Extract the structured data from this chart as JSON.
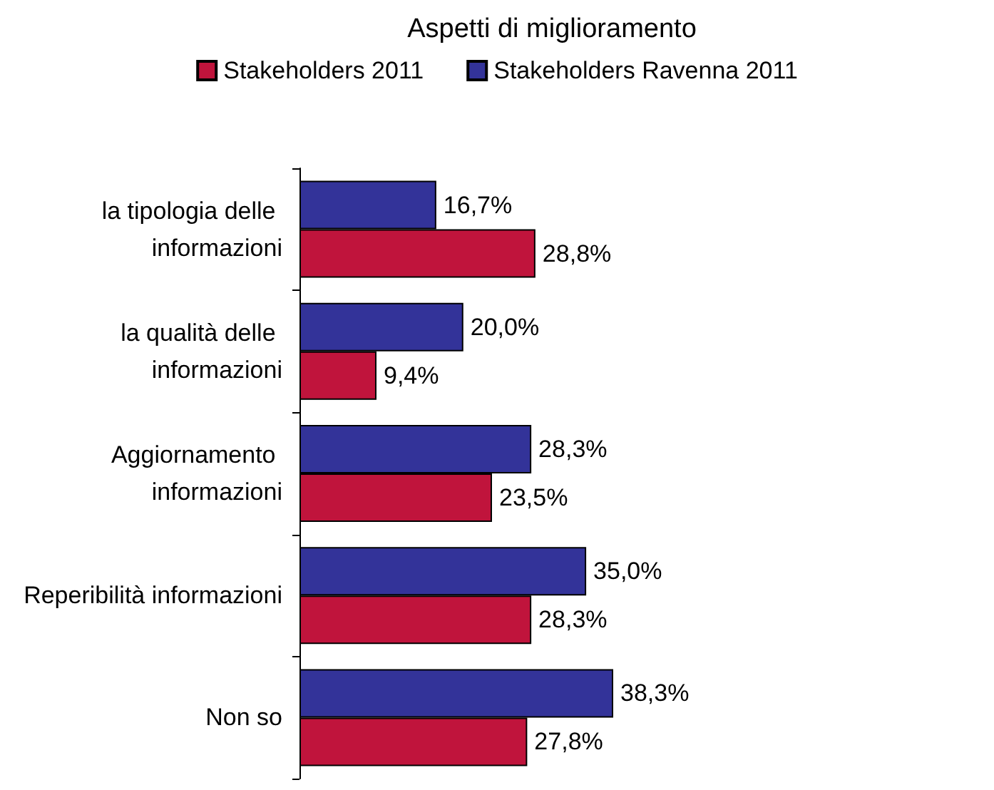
{
  "chart_data": {
    "type": "bar",
    "orientation": "horizontal",
    "title": "Aspetti di miglioramento",
    "categories": [
      "la tipologia delle informazioni",
      "la qualità delle informazioni",
      "Aggiornamento informazioni",
      "Reperibilità informazioni",
      "Non so"
    ],
    "series": [
      {
        "name": "Stakeholders 2011",
        "color": "#c0143c",
        "values": [
          28.8,
          9.4,
          23.5,
          28.3,
          27.8
        ],
        "value_labels": [
          "28,8%",
          "9,4%",
          "23,5%",
          "28,3%",
          "27,8%"
        ]
      },
      {
        "name": "Stakeholders Ravenna 2011",
        "color": "#333399",
        "values": [
          16.7,
          20.0,
          28.3,
          35.0,
          38.3
        ],
        "value_labels": [
          "16,7%",
          "20,0%",
          "28,3%",
          "35,0%",
          "38,3%"
        ]
      }
    ],
    "legend": "top",
    "grid": false
  }
}
